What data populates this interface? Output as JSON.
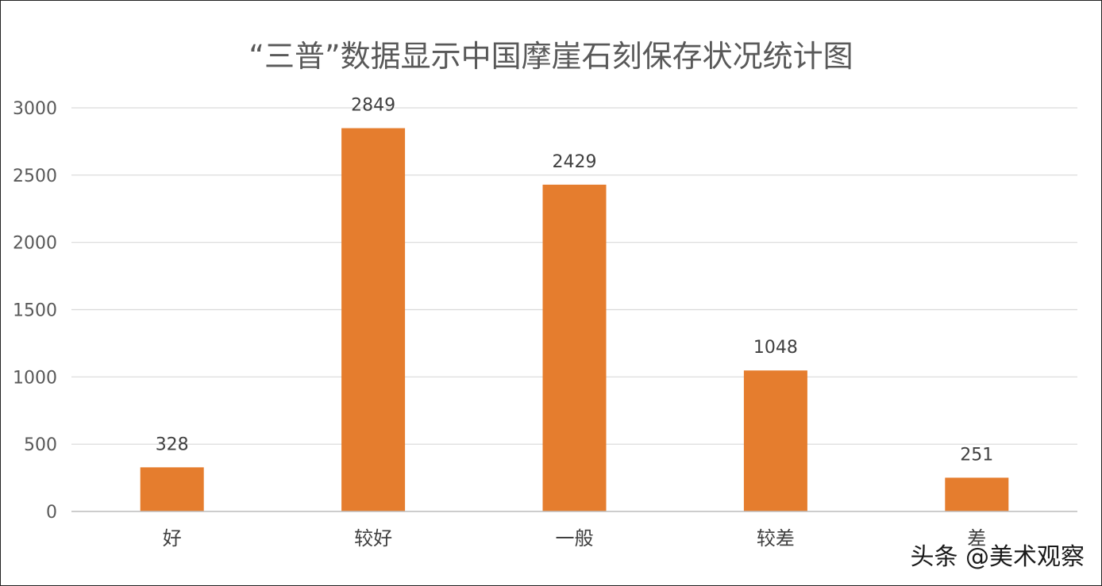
{
  "watermark": "头条 @美术观察",
  "colors": {
    "bar": "#E57D2E",
    "grid": "#D9D9D9",
    "text": "#595959"
  },
  "chart_data": {
    "type": "bar",
    "title": "“三普”数据显示中国摩崖石刻保存状况统计图",
    "categories": [
      "好",
      "较好",
      "一般",
      "较差",
      "差"
    ],
    "values": [
      328,
      2849,
      2429,
      1048,
      251
    ],
    "data_labels": [
      "328",
      "2849",
      "2429",
      "1048",
      "251"
    ],
    "xlabel": "",
    "ylabel": "",
    "ylim": [
      0,
      3000
    ],
    "yticks": [
      0,
      500,
      1000,
      1500,
      2000,
      2500,
      3000
    ],
    "ytick_labels": [
      "0",
      "500",
      "1000",
      "1500",
      "2000",
      "2500",
      "3000"
    ],
    "grid": true,
    "legend": "none"
  }
}
